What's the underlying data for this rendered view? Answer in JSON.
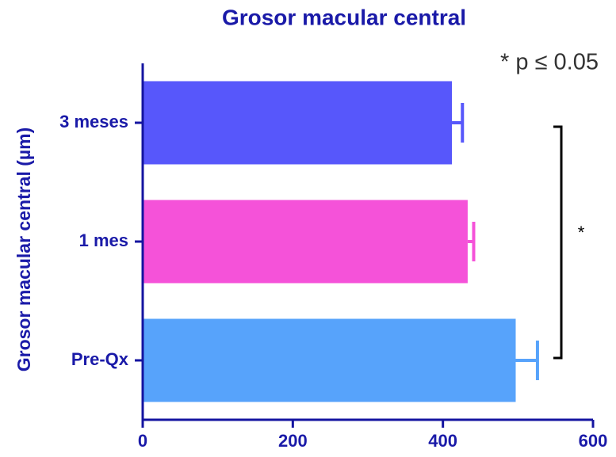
{
  "chart_data": {
    "type": "bar",
    "orientation": "horizontal",
    "title": "Grosor macular central",
    "y_label": "Grosor macular central (µm)",
    "categories": [
      "3 meses",
      "1 mes",
      "Pre-Qx"
    ],
    "values": [
      412,
      433,
      497
    ],
    "errors": [
      14,
      8,
      29
    ],
    "colors": [
      "#5757fb",
      "#f552d9",
      "#57a3fb"
    ],
    "xlim": [
      0,
      600
    ],
    "xticks": [
      0,
      200,
      400,
      600
    ],
    "annotations": [
      "* p ≤ 0.05",
      "*"
    ]
  }
}
